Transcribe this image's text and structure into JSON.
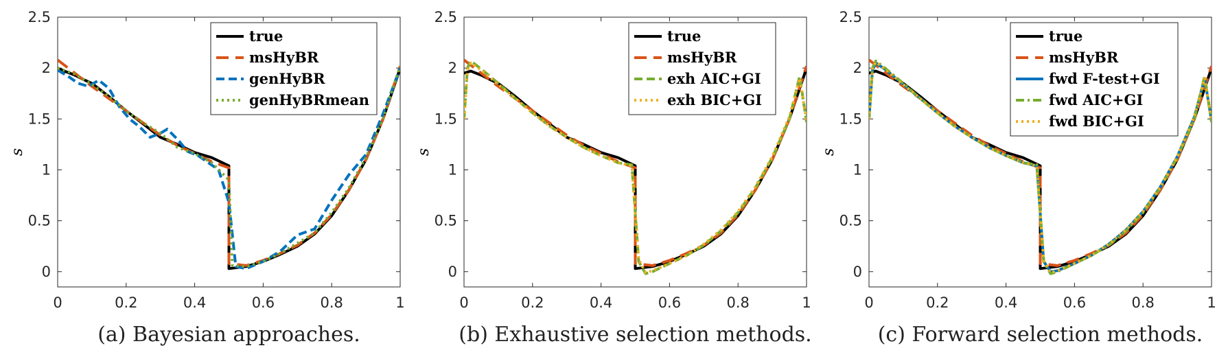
{
  "chart_data": [
    {
      "type": "line",
      "caption": "(a) Bayesian approaches.",
      "ylabel": "s",
      "xlim": [
        0,
        1
      ],
      "ylim": [
        -0.15,
        2.5
      ],
      "xticks": [
        "0",
        "0.2",
        "0.4",
        "0.6",
        "0.8",
        "1"
      ],
      "yticks": [
        "0",
        "0.5",
        "1",
        "1.5",
        "2",
        "2.5"
      ],
      "legend_position": "top-right",
      "series": [
        {
          "name": "true",
          "color": "#000000",
          "dash": "solid",
          "x": [
            0,
            0.02,
            0.05,
            0.08,
            0.1,
            0.15,
            0.2,
            0.25,
            0.3,
            0.35,
            0.4,
            0.45,
            0.5,
            0.5,
            0.55,
            0.6,
            0.65,
            0.7,
            0.75,
            0.8,
            0.85,
            0.9,
            0.95,
            1.0
          ],
          "y": [
            2.0,
            1.97,
            1.93,
            1.88,
            1.85,
            1.72,
            1.58,
            1.45,
            1.32,
            1.25,
            1.17,
            1.12,
            1.04,
            0.03,
            0.05,
            0.1,
            0.17,
            0.25,
            0.37,
            0.55,
            0.8,
            1.1,
            1.5,
            2.0
          ]
        },
        {
          "name": "msHyBR",
          "color": "#D95319",
          "dash": "longdash",
          "x": [
            0,
            0.05,
            0.1,
            0.15,
            0.2,
            0.25,
            0.3,
            0.35,
            0.4,
            0.45,
            0.5,
            0.5,
            0.55,
            0.6,
            0.65,
            0.7,
            0.75,
            0.8,
            0.85,
            0.9,
            0.95,
            1.0
          ],
          "y": [
            2.08,
            1.95,
            1.82,
            1.7,
            1.58,
            1.46,
            1.34,
            1.24,
            1.16,
            1.08,
            1.02,
            0.08,
            0.06,
            0.11,
            0.18,
            0.26,
            0.38,
            0.56,
            0.8,
            1.1,
            1.5,
            2.02
          ]
        },
        {
          "name": "genHyBR",
          "color": "#0072BD",
          "dash": "dash",
          "x": [
            0,
            0.03,
            0.06,
            0.09,
            0.12,
            0.15,
            0.18,
            0.21,
            0.24,
            0.27,
            0.3,
            0.32,
            0.35,
            0.38,
            0.41,
            0.44,
            0.47,
            0.5,
            0.52,
            0.55,
            0.6,
            0.65,
            0.7,
            0.75,
            0.8,
            0.85,
            0.9,
            0.95,
            1.0
          ],
          "y": [
            1.98,
            1.92,
            1.85,
            1.82,
            1.88,
            1.8,
            1.62,
            1.5,
            1.42,
            1.32,
            1.36,
            1.4,
            1.3,
            1.18,
            1.14,
            1.07,
            1.0,
            0.68,
            0.05,
            0.03,
            0.1,
            0.2,
            0.36,
            0.42,
            0.7,
            0.95,
            1.15,
            1.55,
            2.0
          ]
        },
        {
          "name": "genHyBRmean",
          "color": "#77AC30",
          "dash": "dot",
          "x": [
            0,
            0.05,
            0.1,
            0.15,
            0.2,
            0.25,
            0.3,
            0.35,
            0.4,
            0.45,
            0.5,
            0.51,
            0.55,
            0.6,
            0.65,
            0.7,
            0.75,
            0.8,
            0.85,
            0.9,
            0.95,
            1.0
          ],
          "y": [
            2.0,
            1.94,
            1.84,
            1.72,
            1.58,
            1.46,
            1.36,
            1.22,
            1.16,
            1.07,
            0.9,
            0.06,
            0.05,
            0.1,
            0.18,
            0.28,
            0.38,
            0.58,
            0.82,
            1.12,
            1.5,
            2.02
          ]
        }
      ]
    },
    {
      "type": "line",
      "caption": "(b) Exhaustive selection methods.",
      "ylabel": "s",
      "xlim": [
        0,
        1
      ],
      "ylim": [
        -0.15,
        2.5
      ],
      "xticks": [
        "0",
        "0.2",
        "0.4",
        "0.6",
        "0.8",
        "1"
      ],
      "yticks": [
        "0",
        "0.5",
        "1",
        "1.5",
        "2",
        "2.5"
      ],
      "legend_position": "top-right",
      "series": [
        {
          "name": "true",
          "color": "#000000",
          "dash": "solid",
          "x": [
            0,
            0.02,
            0.05,
            0.08,
            0.1,
            0.15,
            0.2,
            0.25,
            0.3,
            0.35,
            0.4,
            0.45,
            0.5,
            0.5,
            0.55,
            0.6,
            0.65,
            0.7,
            0.75,
            0.8,
            0.85,
            0.9,
            0.95,
            1.0
          ],
          "y": [
            1.95,
            1.97,
            1.93,
            1.88,
            1.85,
            1.72,
            1.58,
            1.45,
            1.32,
            1.25,
            1.17,
            1.12,
            1.04,
            0.03,
            0.05,
            0.1,
            0.17,
            0.25,
            0.37,
            0.55,
            0.8,
            1.1,
            1.5,
            2.0
          ]
        },
        {
          "name": "msHyBR",
          "color": "#D95319",
          "dash": "longdash",
          "x": [
            0,
            0.05,
            0.1,
            0.15,
            0.2,
            0.25,
            0.3,
            0.35,
            0.4,
            0.45,
            0.5,
            0.5,
            0.55,
            0.6,
            0.65,
            0.7,
            0.75,
            0.8,
            0.85,
            0.9,
            0.95,
            1.0
          ],
          "y": [
            2.08,
            1.95,
            1.82,
            1.7,
            1.58,
            1.46,
            1.34,
            1.24,
            1.16,
            1.08,
            1.02,
            0.08,
            0.06,
            0.11,
            0.18,
            0.26,
            0.38,
            0.56,
            0.8,
            1.1,
            1.5,
            2.02
          ]
        },
        {
          "name": "exh AIC+GI",
          "color": "#77AC30",
          "dash": "dash",
          "x": [
            0,
            0.01,
            0.02,
            0.05,
            0.1,
            0.15,
            0.2,
            0.25,
            0.3,
            0.35,
            0.4,
            0.45,
            0.49,
            0.51,
            0.53,
            0.55,
            0.6,
            0.65,
            0.7,
            0.75,
            0.8,
            0.85,
            0.9,
            0.95,
            0.98,
            1.0
          ],
          "y": [
            1.5,
            2.0,
            2.07,
            1.99,
            1.85,
            1.7,
            1.56,
            1.43,
            1.32,
            1.22,
            1.14,
            1.07,
            1.05,
            0.1,
            -0.02,
            0.0,
            0.08,
            0.16,
            0.26,
            0.4,
            0.58,
            0.82,
            1.12,
            1.5,
            1.92,
            1.47
          ]
        },
        {
          "name": "exh BIC+GI",
          "color": "#EDB120",
          "dash": "dot",
          "x": [
            0,
            0.01,
            0.02,
            0.05,
            0.1,
            0.15,
            0.2,
            0.25,
            0.3,
            0.35,
            0.4,
            0.45,
            0.49,
            0.51,
            0.53,
            0.55,
            0.6,
            0.65,
            0.7,
            0.75,
            0.8,
            0.85,
            0.9,
            0.95,
            0.98,
            1.0
          ],
          "y": [
            1.5,
            1.98,
            2.05,
            1.98,
            1.84,
            1.7,
            1.56,
            1.43,
            1.32,
            1.22,
            1.14,
            1.07,
            1.04,
            0.12,
            -0.01,
            0.01,
            0.08,
            0.16,
            0.27,
            0.41,
            0.59,
            0.83,
            1.13,
            1.52,
            1.9,
            1.48
          ]
        }
      ]
    },
    {
      "type": "line",
      "caption": "(c) Forward selection methods.",
      "ylabel": "s",
      "xlim": [
        0,
        1
      ],
      "ylim": [
        -0.15,
        2.5
      ],
      "xticks": [
        "0",
        "0.2",
        "0.4",
        "0.6",
        "0.8",
        "1"
      ],
      "yticks": [
        "0",
        "0.5",
        "1",
        "1.5",
        "2",
        "2.5"
      ],
      "legend_position": "top-right",
      "series": [
        {
          "name": "true",
          "color": "#000000",
          "dash": "solid",
          "x": [
            0,
            0.02,
            0.05,
            0.08,
            0.1,
            0.15,
            0.2,
            0.25,
            0.3,
            0.35,
            0.4,
            0.45,
            0.5,
            0.5,
            0.55,
            0.6,
            0.65,
            0.7,
            0.75,
            0.8,
            0.85,
            0.9,
            0.95,
            1.0
          ],
          "y": [
            1.95,
            1.97,
            1.93,
            1.88,
            1.85,
            1.72,
            1.58,
            1.45,
            1.32,
            1.25,
            1.17,
            1.12,
            1.04,
            0.03,
            0.05,
            0.1,
            0.17,
            0.25,
            0.37,
            0.55,
            0.8,
            1.1,
            1.5,
            2.0
          ]
        },
        {
          "name": "msHyBR",
          "color": "#D95319",
          "dash": "longdash",
          "x": [
            0,
            0.05,
            0.1,
            0.15,
            0.2,
            0.25,
            0.3,
            0.35,
            0.4,
            0.45,
            0.5,
            0.5,
            0.55,
            0.6,
            0.65,
            0.7,
            0.75,
            0.8,
            0.85,
            0.9,
            0.95,
            1.0
          ],
          "y": [
            2.08,
            1.95,
            1.82,
            1.7,
            1.58,
            1.46,
            1.34,
            1.24,
            1.16,
            1.08,
            1.02,
            0.08,
            0.06,
            0.11,
            0.18,
            0.26,
            0.38,
            0.56,
            0.8,
            1.1,
            1.5,
            2.02
          ]
        },
        {
          "name": "fwd F-test+GI",
          "color": "#0072BD",
          "dash": "solid",
          "x": [
            0,
            0.01,
            0.02,
            0.05,
            0.1,
            0.15,
            0.2,
            0.25,
            0.3,
            0.35,
            0.4,
            0.45,
            0.49,
            0.51,
            0.53,
            0.55,
            0.6,
            0.65,
            0.7,
            0.75,
            0.8,
            0.85,
            0.9,
            0.95,
            0.98,
            1.0
          ],
          "y": [
            1.5,
            1.98,
            2.05,
            1.98,
            1.84,
            1.7,
            1.56,
            1.43,
            1.32,
            1.22,
            1.14,
            1.07,
            1.04,
            0.1,
            0.0,
            0.01,
            0.08,
            0.16,
            0.27,
            0.41,
            0.59,
            0.83,
            1.13,
            1.52,
            1.9,
            1.48
          ]
        },
        {
          "name": "fwd AIC+GI",
          "color": "#77AC30",
          "dash": "dashdot",
          "x": [
            0,
            0.01,
            0.02,
            0.05,
            0.1,
            0.15,
            0.2,
            0.25,
            0.3,
            0.35,
            0.4,
            0.45,
            0.49,
            0.51,
            0.53,
            0.55,
            0.6,
            0.65,
            0.7,
            0.75,
            0.8,
            0.85,
            0.9,
            0.95,
            0.98,
            1.0
          ],
          "y": [
            1.5,
            2.0,
            2.07,
            1.99,
            1.85,
            1.7,
            1.56,
            1.43,
            1.32,
            1.22,
            1.14,
            1.07,
            1.05,
            0.1,
            -0.02,
            0.0,
            0.08,
            0.16,
            0.26,
            0.4,
            0.58,
            0.82,
            1.12,
            1.5,
            1.92,
            1.47
          ]
        },
        {
          "name": "fwd BIC+GI",
          "color": "#EDB120",
          "dash": "dot",
          "x": [
            0,
            0.01,
            0.02,
            0.05,
            0.1,
            0.15,
            0.2,
            0.25,
            0.3,
            0.35,
            0.4,
            0.45,
            0.49,
            0.51,
            0.53,
            0.55,
            0.6,
            0.65,
            0.7,
            0.75,
            0.8,
            0.85,
            0.9,
            0.95,
            0.98,
            1.0
          ],
          "y": [
            1.5,
            1.99,
            2.06,
            1.98,
            1.84,
            1.7,
            1.56,
            1.43,
            1.32,
            1.22,
            1.14,
            1.07,
            1.04,
            0.11,
            -0.01,
            0.01,
            0.08,
            0.16,
            0.27,
            0.41,
            0.59,
            0.83,
            1.13,
            1.52,
            1.9,
            1.48
          ]
        }
      ]
    }
  ]
}
